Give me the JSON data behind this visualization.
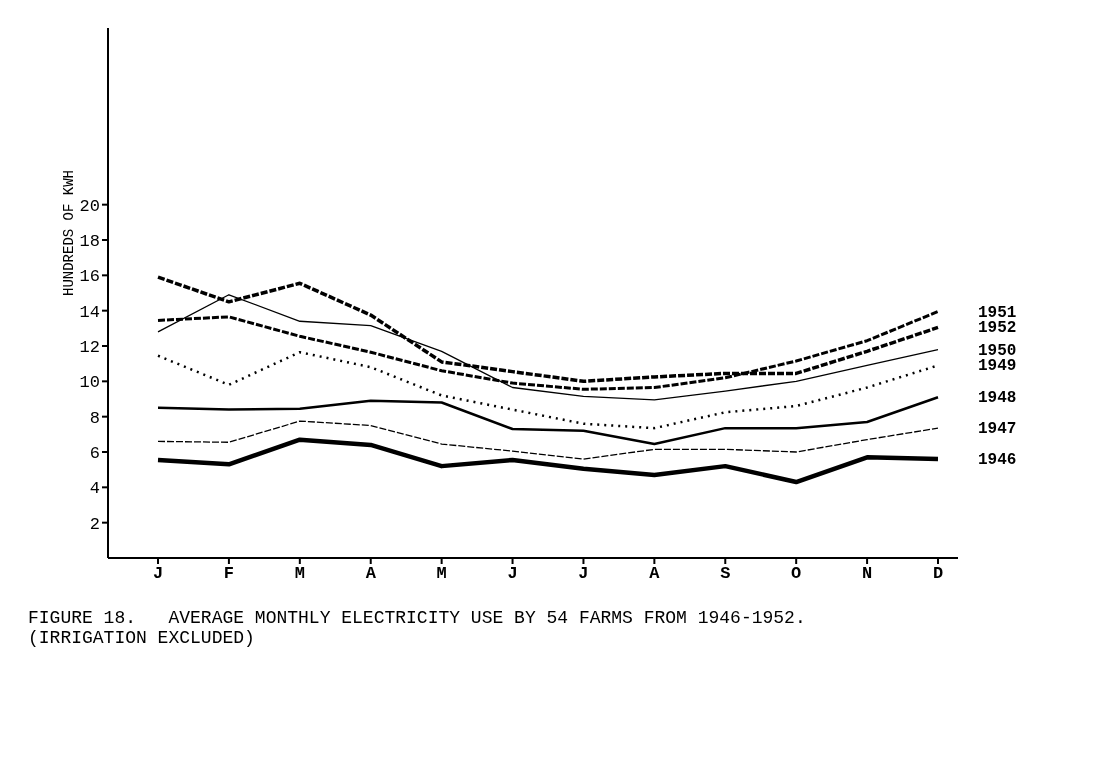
{
  "chart_data": {
    "type": "line",
    "title": "FIGURE 18.   AVERAGE MONTHLY ELECTRICITY USE BY 54 FARMS FROM 1946-1952.   (IRRIGATION EXCLUDED)",
    "ylabel": "HUNDREDS OF KWH",
    "categories": [
      "J",
      "F",
      "M",
      "A",
      "M",
      "J",
      "J",
      "A",
      "S",
      "O",
      "N",
      "D"
    ],
    "ylim": [
      0,
      30
    ],
    "yticks": [
      2,
      4,
      6,
      8,
      10,
      12,
      14,
      16,
      18,
      20
    ],
    "grid": false,
    "legend": false,
    "marker": "none",
    "series": [
      {
        "name": "1951",
        "color": "#000000",
        "line_style": "dashed",
        "values": [
          13.45,
          13.65,
          12.55,
          11.65,
          10.6,
          9.9,
          9.55,
          9.65,
          10.2,
          11.15,
          12.3,
          13.95
        ]
      },
      {
        "name": "1952",
        "color": "#000000",
        "line_style": "dashed",
        "values": [
          15.9,
          14.5,
          15.55,
          13.75,
          11.1,
          10.55,
          10.0,
          10.25,
          10.45,
          10.45,
          11.7,
          13.05
        ]
      },
      {
        "name": "1950",
        "color": "#000000",
        "line_style": "solid",
        "values": [
          12.8,
          14.9,
          13.4,
          13.15,
          11.7,
          9.65,
          9.15,
          8.95,
          9.45,
          10.0,
          10.9,
          11.8
        ]
      },
      {
        "name": "1949",
        "color": "#000000",
        "line_style": "dotted",
        "values": [
          11.45,
          9.8,
          11.65,
          10.8,
          9.2,
          8.4,
          7.6,
          7.35,
          8.25,
          8.6,
          9.65,
          10.9
        ]
      },
      {
        "name": "1948",
        "color": "#000000",
        "line_style": "solid",
        "values": [
          8.5,
          8.4,
          8.45,
          8.9,
          8.8,
          7.3,
          7.2,
          6.45,
          7.35,
          7.35,
          7.7,
          9.1
        ]
      },
      {
        "name": "1947",
        "color": "#000000",
        "line_style": "dashed",
        "values": [
          6.6,
          6.55,
          7.75,
          7.5,
          6.45,
          6.05,
          5.6,
          6.15,
          6.15,
          6.0,
          6.7,
          7.35
        ]
      },
      {
        "name": "1946",
        "color": "#000000",
        "line_style": "solid",
        "values": [
          5.55,
          5.3,
          6.7,
          6.4,
          5.2,
          5.55,
          5.05,
          4.7,
          5.2,
          4.3,
          5.7,
          5.6
        ]
      }
    ]
  }
}
